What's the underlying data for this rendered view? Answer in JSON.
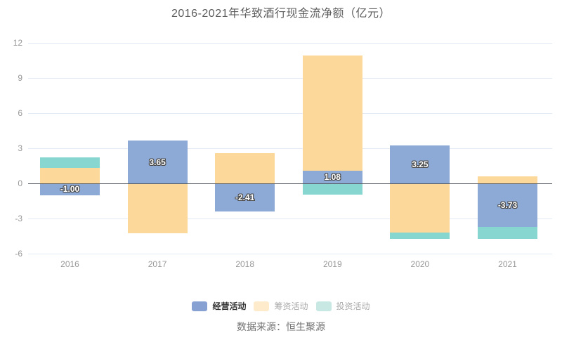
{
  "title": "2016-2021年华致酒行现金流净额（亿元）",
  "source": "数据来源：恒生聚源",
  "colors": {
    "operating": "#8DA9D6",
    "financing": "#FCD89B",
    "investing": "#87D6D0",
    "grid": "#E4EAF4",
    "zero_line": "#555A60",
    "axis_label": "#999999",
    "title_text": "#5E5E5E",
    "source_text": "#737373",
    "bar_label_text": "#FFFFFF",
    "bar_label_outline": "#4A4A4A",
    "legend_active_text": "#333333",
    "legend_inactive_text": "#AAAAAA"
  },
  "legend": {
    "items": [
      {
        "label": "经营活动",
        "swatch": "#87A2D2",
        "text_color": "#333333",
        "bold": true
      },
      {
        "label": "筹资活动",
        "swatch": "#FDEBCB",
        "text_color": "#AAAAAA",
        "bold": false
      },
      {
        "label": "投资活动",
        "swatch": "#C7E8E3",
        "text_color": "#AAAAAA",
        "bold": false
      }
    ]
  },
  "chart_data": {
    "type": "bar",
    "stacked": true,
    "title": "2016-2021年华致酒行现金流净额（亿元）",
    "categories": [
      "2016",
      "2017",
      "2018",
      "2019",
      "2020",
      "2021"
    ],
    "series": [
      {
        "name": "经营活动",
        "color_key": "operating",
        "values": [
          -1.0,
          3.65,
          -2.41,
          1.08,
          3.25,
          -3.73
        ],
        "labels": [
          "-1.00",
          "3.65",
          "-2.41",
          "1.08",
          "3.25",
          "-3.73"
        ]
      },
      {
        "name": "筹资活动",
        "color_key": "financing",
        "values": [
          1.32,
          -4.25,
          2.56,
          9.84,
          -4.2,
          0.62
        ]
      },
      {
        "name": "投资活动",
        "color_key": "investing",
        "values": [
          0.9,
          0,
          0,
          -0.95,
          -0.55,
          -1.0
        ]
      }
    ],
    "yticks": [
      12,
      9,
      6,
      3,
      0,
      -3,
      -6
    ],
    "ylim": [
      -6,
      12
    ],
    "xlabel": "",
    "ylabel": "",
    "grid": true,
    "legend_position": "bottom"
  }
}
